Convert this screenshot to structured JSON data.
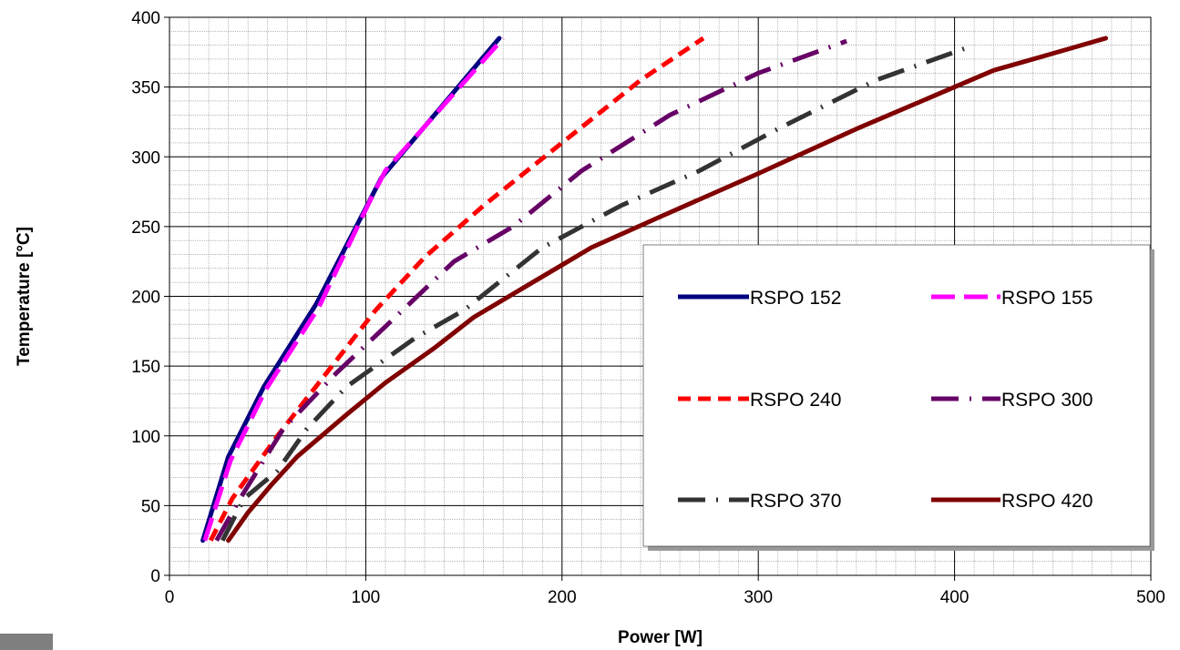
{
  "chart_data": {
    "type": "line",
    "xlabel": "Power [W]",
    "ylabel": "Temperature [°C]",
    "xlim": [
      0,
      500
    ],
    "ylim": [
      0,
      400
    ],
    "xticks": [
      0,
      100,
      200,
      300,
      400,
      500
    ],
    "yticks": [
      0,
      50,
      100,
      150,
      200,
      250,
      300,
      350,
      400
    ],
    "grid": {
      "major": true,
      "minor": true,
      "minor_x_step": 10,
      "minor_y_step": 10
    },
    "legend_position": "lower-right",
    "series": [
      {
        "name": "RSPO 152",
        "color": "#000080",
        "style": "solid",
        "points": [
          [
            17,
            25
          ],
          [
            30,
            85
          ],
          [
            48,
            135
          ],
          [
            75,
            195
          ],
          [
            108,
            285
          ],
          [
            168,
            385
          ]
        ]
      },
      {
        "name": "RSPO 155",
        "color": "#ff00ff",
        "style": "long-dash",
        "points": [
          [
            18,
            25
          ],
          [
            31,
            82
          ],
          [
            49,
            133
          ],
          [
            76,
            192
          ],
          [
            102,
            268
          ],
          [
            110,
            290
          ],
          [
            170,
            385
          ]
        ]
      },
      {
        "name": "RSPO 240",
        "color": "#ff0000",
        "style": "dash",
        "points": [
          [
            21,
            25
          ],
          [
            32,
            55
          ],
          [
            55,
            100
          ],
          [
            80,
            145
          ],
          [
            105,
            190
          ],
          [
            130,
            228
          ],
          [
            160,
            265
          ],
          [
            200,
            310
          ],
          [
            240,
            355
          ],
          [
            272,
            385
          ]
        ]
      },
      {
        "name": "RSPO 300",
        "color": "#660066",
        "style": "long-dash-dot",
        "points": [
          [
            24,
            25
          ],
          [
            36,
            55
          ],
          [
            58,
            105
          ],
          [
            85,
            145
          ],
          [
            115,
            185
          ],
          [
            145,
            225
          ],
          [
            175,
            250
          ],
          [
            210,
            290
          ],
          [
            255,
            330
          ],
          [
            300,
            360
          ],
          [
            345,
            383
          ]
        ]
      },
      {
        "name": "RSPO 370",
        "color": "#333333",
        "style": "long-dash-dot",
        "points": [
          [
            27,
            25
          ],
          [
            38,
            55
          ],
          [
            55,
            75
          ],
          [
            70,
            105
          ],
          [
            90,
            135
          ],
          [
            125,
            170
          ],
          [
            150,
            190
          ],
          [
            190,
            235
          ],
          [
            230,
            265
          ],
          [
            270,
            290
          ],
          [
            310,
            320
          ],
          [
            360,
            355
          ],
          [
            410,
            380
          ]
        ]
      },
      {
        "name": "RSPO 420",
        "color": "#800000",
        "style": "solid",
        "points": [
          [
            30,
            25
          ],
          [
            40,
            45
          ],
          [
            52,
            65
          ],
          [
            65,
            85
          ],
          [
            90,
            115
          ],
          [
            110,
            138
          ],
          [
            135,
            163
          ],
          [
            155,
            185
          ],
          [
            185,
            210
          ],
          [
            215,
            235
          ],
          [
            250,
            257
          ],
          [
            300,
            288
          ],
          [
            350,
            320
          ],
          [
            400,
            350
          ],
          [
            420,
            362
          ],
          [
            445,
            372
          ],
          [
            477,
            385
          ]
        ]
      }
    ]
  }
}
